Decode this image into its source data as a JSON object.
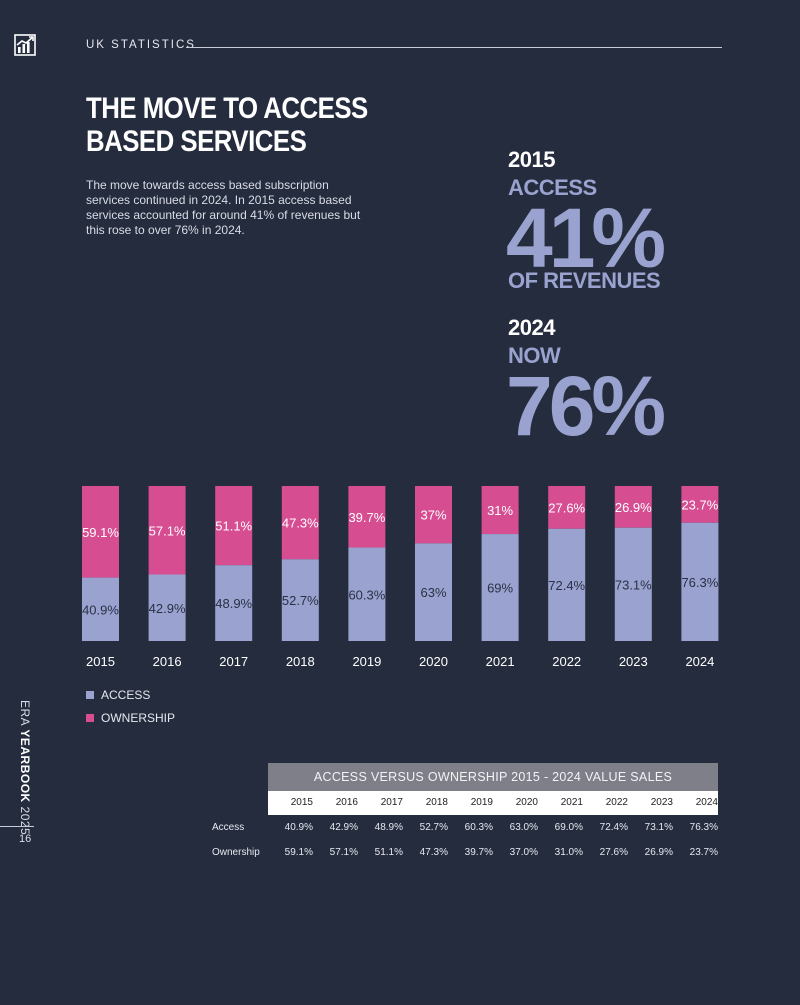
{
  "header": {
    "section_label": "UK STATISTICS"
  },
  "title": {
    "line1": "THE MOVE TO ACCESS",
    "line2": "BASED SERVICES"
  },
  "intro": "The move towards access based subscription services continued in 2024.  In 2015 access based services accounted for around 41% of revenues but this rose to over 76% in 2024.",
  "callouts": {
    "c2015": {
      "year": "2015",
      "word": "ACCESS",
      "value": "41%",
      "sub": "OF REVENUES"
    },
    "c2024": {
      "year": "2024",
      "word": "NOW",
      "value": "76%"
    }
  },
  "colors": {
    "access": "#9aa3cf",
    "ownership": "#d64d92",
    "background": "#252c3e"
  },
  "legend": {
    "access": "ACCESS",
    "ownership": "OWNERSHIP"
  },
  "side": {
    "prefix": "ERA ",
    "bold": "YEARBOOK",
    "suffix": " 2025",
    "page_number": "16"
  },
  "chart_data": {
    "type": "bar",
    "stacked": true,
    "categories": [
      "2015",
      "2016",
      "2017",
      "2018",
      "2019",
      "2020",
      "2021",
      "2022",
      "2023",
      "2024"
    ],
    "series": [
      {
        "name": "ACCESS",
        "values": [
          40.9,
          42.9,
          48.9,
          52.7,
          60.3,
          63,
          69,
          72.4,
          73.1,
          76.3
        ],
        "labels": [
          "40.9%",
          "42.9%",
          "48.9%",
          "52.7%",
          "60.3%",
          "63%",
          "69%",
          "72.4%",
          "73.1%",
          "76.3%"
        ]
      },
      {
        "name": "OWNERSHIP",
        "values": [
          59.1,
          57.1,
          51.1,
          47.3,
          39.7,
          37,
          31,
          27.6,
          26.9,
          23.7
        ],
        "labels": [
          "59.1%",
          "57.1%",
          "51.1%",
          "47.3%",
          "39.7%",
          "37%",
          "31%",
          "27.6%",
          "26.9%",
          "23.7%"
        ]
      }
    ],
    "ylim": [
      0,
      100
    ],
    "title": "",
    "xlabel": "",
    "ylabel": ""
  },
  "table": {
    "title": "ACCESS VERSUS OWNERSHIP 2015 - 2024 VALUE SALES",
    "years": [
      "2015",
      "2016",
      "2017",
      "2018",
      "2019",
      "2020",
      "2021",
      "2022",
      "2023",
      "2024"
    ],
    "rows": [
      {
        "label": "Access",
        "values": [
          "40.9%",
          "42.9%",
          "48.9%",
          "52.7%",
          "60.3%",
          "63.0%",
          "69.0%",
          "72.4%",
          "73.1%",
          "76.3%"
        ]
      },
      {
        "label": "Ownership",
        "values": [
          "59.1%",
          "57.1%",
          "51.1%",
          "47.3%",
          "39.7%",
          "37.0%",
          "31.0%",
          "27.6%",
          "26.9%",
          "23.7%"
        ]
      }
    ]
  }
}
